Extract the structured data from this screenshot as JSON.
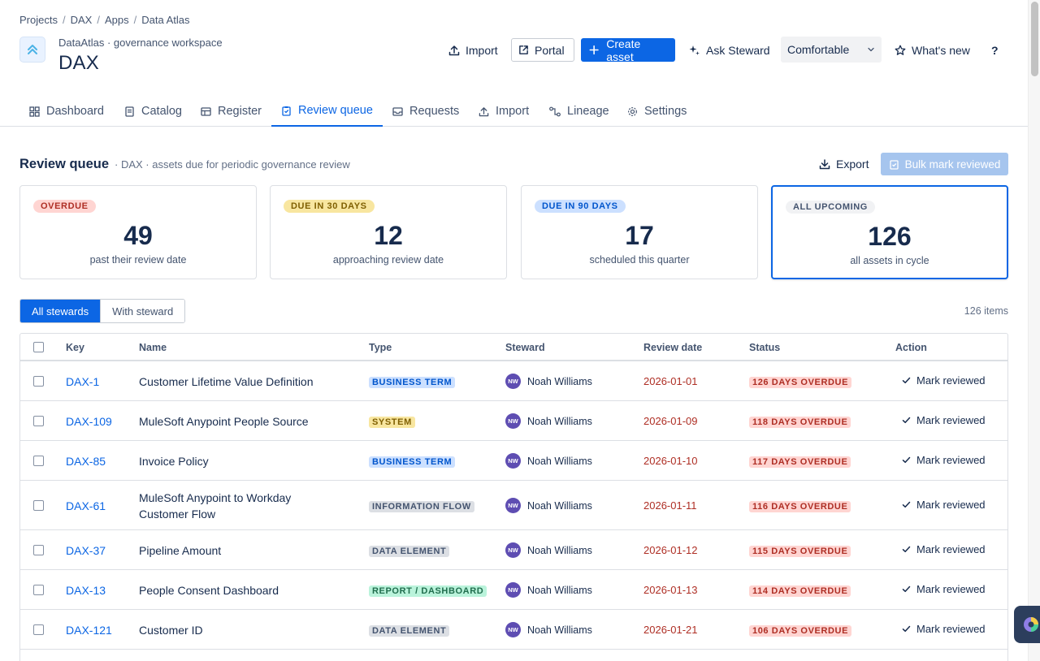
{
  "breadcrumb": [
    "Projects",
    "DAX",
    "Apps",
    "Data Atlas"
  ],
  "header": {
    "subtitle": "DataAtlas · governance workspace",
    "title": "DAX"
  },
  "actions": {
    "import": "Import",
    "portal": "Portal",
    "create": "Create asset",
    "ask": "Ask Steward",
    "density": "Comfortable",
    "whats_new": "What's new",
    "help": "?"
  },
  "tabs": [
    {
      "label": "Dashboard",
      "icon": "dashboard-icon"
    },
    {
      "label": "Catalog",
      "icon": "catalog-icon"
    },
    {
      "label": "Register",
      "icon": "register-icon"
    },
    {
      "label": "Review queue",
      "icon": "review-icon",
      "active": true
    },
    {
      "label": "Requests",
      "icon": "inbox-icon"
    },
    {
      "label": "Import",
      "icon": "upload-icon"
    },
    {
      "label": "Lineage",
      "icon": "lineage-icon"
    },
    {
      "label": "Settings",
      "icon": "gear-icon"
    }
  ],
  "section": {
    "title": "Review queue",
    "subtitle": "· DAX · assets due for periodic governance review",
    "export": "Export",
    "bulk": "Bulk mark reviewed"
  },
  "cards": [
    {
      "badge": "OVERDUE",
      "value": "49",
      "caption": "past their review date",
      "badge_bg": "#ffd5d2",
      "badge_fg": "#ae2e24"
    },
    {
      "badge": "DUE IN 30 DAYS",
      "value": "12",
      "caption": "approaching review date",
      "badge_bg": "#f8e6a0",
      "badge_fg": "#7f5f01"
    },
    {
      "badge": "DUE IN 90 DAYS",
      "value": "17",
      "caption": "scheduled this quarter",
      "badge_bg": "#cce0ff",
      "badge_fg": "#0055cc"
    },
    {
      "badge": "ALL UPCOMING",
      "value": "126",
      "caption": "all assets in cycle",
      "badge_bg": "#f1f2f4",
      "badge_fg": "#44546f",
      "selected": true
    }
  ],
  "filters": {
    "all": "All stewards",
    "with": "With steward",
    "count": "126 items"
  },
  "table": {
    "headers": [
      "Key",
      "Name",
      "Type",
      "Steward",
      "Review date",
      "Status",
      "Action"
    ],
    "rows": [
      {
        "key": "DAX-1",
        "name": "Customer Lifetime Value Definition",
        "type": "BUSINESS TERM",
        "type_bg": "#cce0ff",
        "type_fg": "#0055cc",
        "initials": "NW",
        "steward": "Noah Williams",
        "date": "2026-01-01",
        "status": "126 DAYS OVERDUE",
        "action": "Mark reviewed"
      },
      {
        "key": "DAX-109",
        "name": "MuleSoft Anypoint People Source",
        "type": "SYSTEM",
        "type_bg": "#f8e6a0",
        "type_fg": "#7f5f01",
        "initials": "NW",
        "steward": "Noah Williams",
        "date": "2026-01-09",
        "status": "118 DAYS OVERDUE",
        "action": "Mark reviewed"
      },
      {
        "key": "DAX-85",
        "name": "Invoice Policy",
        "type": "BUSINESS TERM",
        "type_bg": "#cce0ff",
        "type_fg": "#0055cc",
        "initials": "NW",
        "steward": "Noah Williams",
        "date": "2026-01-10",
        "status": "117 DAYS OVERDUE",
        "action": "Mark reviewed"
      },
      {
        "key": "DAX-61",
        "name": "MuleSoft Anypoint to Workday Customer Flow",
        "type": "INFORMATION FLOW",
        "type_bg": "#dcdfe4",
        "type_fg": "#44546f",
        "initials": "NW",
        "steward": "Noah Williams",
        "date": "2026-01-11",
        "status": "116 DAYS OVERDUE",
        "action": "Mark reviewed"
      },
      {
        "key": "DAX-37",
        "name": "Pipeline Amount",
        "type": "DATA ELEMENT",
        "type_bg": "#dcdfe4",
        "type_fg": "#44546f",
        "initials": "NW",
        "steward": "Noah Williams",
        "date": "2026-01-12",
        "status": "115 DAYS OVERDUE",
        "action": "Mark reviewed"
      },
      {
        "key": "DAX-13",
        "name": "People Consent Dashboard",
        "type": "REPORT / DASHBOARD",
        "type_bg": "#baf3db",
        "type_fg": "#216e4e",
        "initials": "NW",
        "steward": "Noah Williams",
        "date": "2026-01-13",
        "status": "114 DAYS OVERDUE",
        "action": "Mark reviewed"
      },
      {
        "key": "DAX-121",
        "name": "Customer ID",
        "type": "DATA ELEMENT",
        "type_bg": "#dcdfe4",
        "type_fg": "#44546f",
        "initials": "NW",
        "steward": "Noah Williams",
        "date": "2026-01-21",
        "status": "106 DAYS OVERDUE",
        "action": "Mark reviewed"
      }
    ]
  }
}
